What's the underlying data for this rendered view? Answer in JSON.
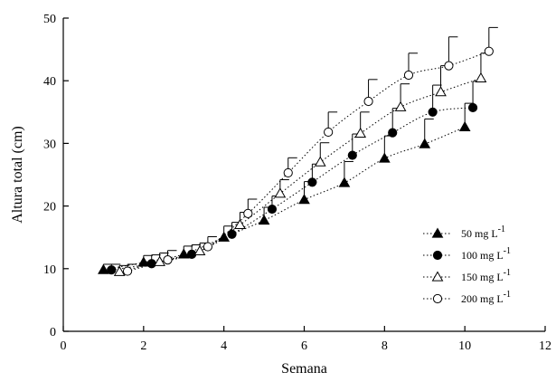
{
  "chart_data": {
    "type": "scatter",
    "xlabel": "Semana",
    "ylabel": "Altura total (cm)",
    "xlim": [
      0,
      12
    ],
    "ylim": [
      0,
      50
    ],
    "xticks": [
      "0",
      "2",
      "4",
      "6",
      "8",
      "10",
      "12"
    ],
    "yticks": [
      "0",
      "10",
      "20",
      "30",
      "40",
      "50"
    ],
    "grid": false,
    "legend_position": "right",
    "series": [
      {
        "name": "50 mg L",
        "name_superscript": "-1",
        "marker": "filled-triangle",
        "x": [
          1,
          2,
          3,
          4,
          5,
          6,
          7,
          8,
          9,
          10
        ],
        "y": [
          9.8,
          11.0,
          12.3,
          15.0,
          17.7,
          21.0,
          23.7,
          27.6,
          29.9,
          32.6
        ],
        "error": [
          0.9,
          1.1,
          1.3,
          1.8,
          2.1,
          2.9,
          3.4,
          3.6,
          4.0,
          3.8
        ]
      },
      {
        "name": "100 mg L",
        "name_superscript": "-1",
        "marker": "filled-circle",
        "x": [
          1.2,
          2.2,
          3.2,
          4.2,
          5.2,
          6.2,
          7.2,
          8.2,
          9.2,
          10.2
        ],
        "y": [
          9.8,
          10.8,
          12.3,
          15.5,
          19.5,
          23.8,
          28.1,
          31.7,
          35.0,
          35.7
        ],
        "error": [
          0.9,
          1.4,
          1.5,
          1.9,
          2.1,
          2.9,
          3.4,
          3.9,
          4.3,
          4.2
        ]
      },
      {
        "name": "150 mg L",
        "name_superscript": "-1",
        "marker": "open-triangle",
        "x": [
          1.4,
          2.4,
          3.4,
          4.4,
          5.4,
          6.4,
          7.4,
          8.4,
          9.4,
          10.4
        ],
        "y": [
          9.5,
          11.1,
          12.8,
          17.0,
          22.0,
          27.0,
          31.6,
          35.8,
          38.2,
          40.4
        ],
        "error": [
          1.0,
          1.4,
          1.3,
          2.0,
          2.2,
          3.1,
          3.4,
          3.7,
          4.2,
          4.0
        ]
      },
      {
        "name": "200 mg L",
        "name_superscript": "-1",
        "marker": "open-circle",
        "x": [
          1.6,
          2.6,
          3.6,
          4.6,
          5.6,
          6.6,
          7.6,
          8.6,
          9.6,
          10.6
        ],
        "y": [
          9.6,
          11.4,
          13.5,
          18.8,
          25.3,
          31.8,
          36.7,
          40.9,
          42.4,
          44.7
        ],
        "error": [
          1.1,
          1.5,
          1.6,
          2.3,
          2.4,
          3.2,
          3.5,
          3.5,
          4.6,
          3.8
        ]
      }
    ]
  }
}
